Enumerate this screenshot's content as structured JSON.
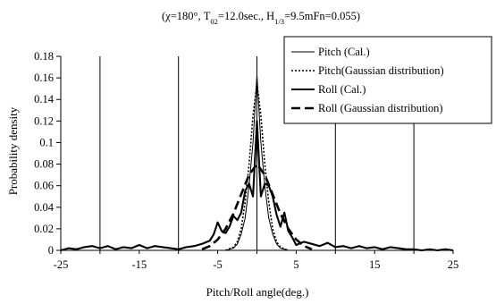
{
  "chart_data": {
    "type": "line",
    "title_parts": {
      "pre": "(χ=180°, T",
      "sub1": "02",
      "mid1": "=12.0sec., H",
      "sub2": "1/3",
      "post": "=9.5mFn=0.055)"
    },
    "xlabel": "Pitch/Roll angle(deg.)",
    "ylabel": "Probability density",
    "xlim": [
      -25,
      25
    ],
    "ylim": [
      0,
      0.18
    ],
    "xticks": [
      -25,
      -15,
      -5,
      5,
      15,
      25
    ],
    "xtick_labels": [
      "-25",
      "-15",
      "-5",
      "5",
      "15",
      "25"
    ],
    "yticks": [
      0,
      0.02,
      0.04,
      0.06,
      0.08,
      0.1,
      0.12,
      0.14,
      0.16,
      0.18
    ],
    "ytick_labels": [
      "0",
      "0.02",
      "0.04",
      "0.06",
      "0.08",
      "0.1",
      "0.12",
      "0.14",
      "0.16",
      "0.18"
    ],
    "grid": "vertical",
    "legend_position": "top-right",
    "series": [
      {
        "name": "Pitch (Cal.)",
        "style": "thin-solid",
        "x": [
          -4,
          -3,
          -2.5,
          -2,
          -1.5,
          -1,
          -0.5,
          0,
          0.5,
          1,
          1.5,
          2,
          2.5,
          3,
          4
        ],
        "y": [
          0,
          0.002,
          0.006,
          0.015,
          0.03,
          0.06,
          0.1,
          0.163,
          0.1,
          0.06,
          0.03,
          0.015,
          0.006,
          0.002,
          0
        ]
      },
      {
        "name": "Pitch(Gaussian distribution)",
        "style": "dotted",
        "x": [
          -4,
          -3,
          -2.5,
          -2,
          -1.5,
          -1,
          -0.5,
          0,
          0.5,
          1,
          1.5,
          2,
          2.5,
          3,
          4
        ],
        "y": [
          0,
          0.003,
          0.008,
          0.02,
          0.045,
          0.08,
          0.125,
          0.155,
          0.125,
          0.08,
          0.045,
          0.02,
          0.008,
          0.003,
          0
        ]
      },
      {
        "name": "Roll (Cal.)",
        "style": "thick-solid",
        "x": [
          -25,
          -24,
          -23,
          -22,
          -21,
          -20,
          -19,
          -18,
          -17,
          -16,
          -15,
          -14,
          -13,
          -12,
          -11,
          -10,
          -9,
          -8,
          -7,
          -6,
          -5.5,
          -5,
          -4.5,
          -4,
          -3.5,
          -3,
          -2.5,
          -2,
          -1.5,
          -1,
          -0.5,
          0,
          0.5,
          1,
          1.5,
          2,
          2.5,
          3,
          3.5,
          4,
          4.5,
          5,
          6,
          7,
          8,
          9,
          10,
          11,
          12,
          13,
          14,
          15,
          16,
          17,
          18,
          19,
          20,
          21,
          22,
          23,
          24,
          25
        ],
        "y": [
          0,
          0.002,
          0.001,
          0.003,
          0.004,
          0.002,
          0.004,
          0.001,
          0.003,
          0.002,
          0.005,
          0.002,
          0.004,
          0.003,
          0.002,
          0.001,
          0.003,
          0.004,
          0.006,
          0.009,
          0.015,
          0.026,
          0.018,
          0.016,
          0.022,
          0.032,
          0.028,
          0.035,
          0.055,
          0.062,
          0.05,
          0.12,
          0.05,
          0.062,
          0.06,
          0.05,
          0.033,
          0.022,
          0.035,
          0.018,
          0.012,
          0.005,
          0.008,
          0.006,
          0.004,
          0.007,
          0.003,
          0.004,
          0.002,
          0.004,
          0.002,
          0.003,
          0.001,
          0.003,
          0.002,
          0.001,
          0.001,
          0,
          0.001,
          0,
          0.001,
          0
        ]
      },
      {
        "name": "Roll (Gaussian distribution)",
        "style": "thick-dashed",
        "x": [
          -7,
          -6,
          -5,
          -4,
          -3,
          -2,
          -1,
          0,
          1,
          2,
          3,
          4,
          5,
          6,
          7
        ],
        "y": [
          0.001,
          0.004,
          0.01,
          0.02,
          0.034,
          0.052,
          0.07,
          0.08,
          0.07,
          0.052,
          0.034,
          0.02,
          0.01,
          0.004,
          0.001
        ]
      }
    ]
  }
}
